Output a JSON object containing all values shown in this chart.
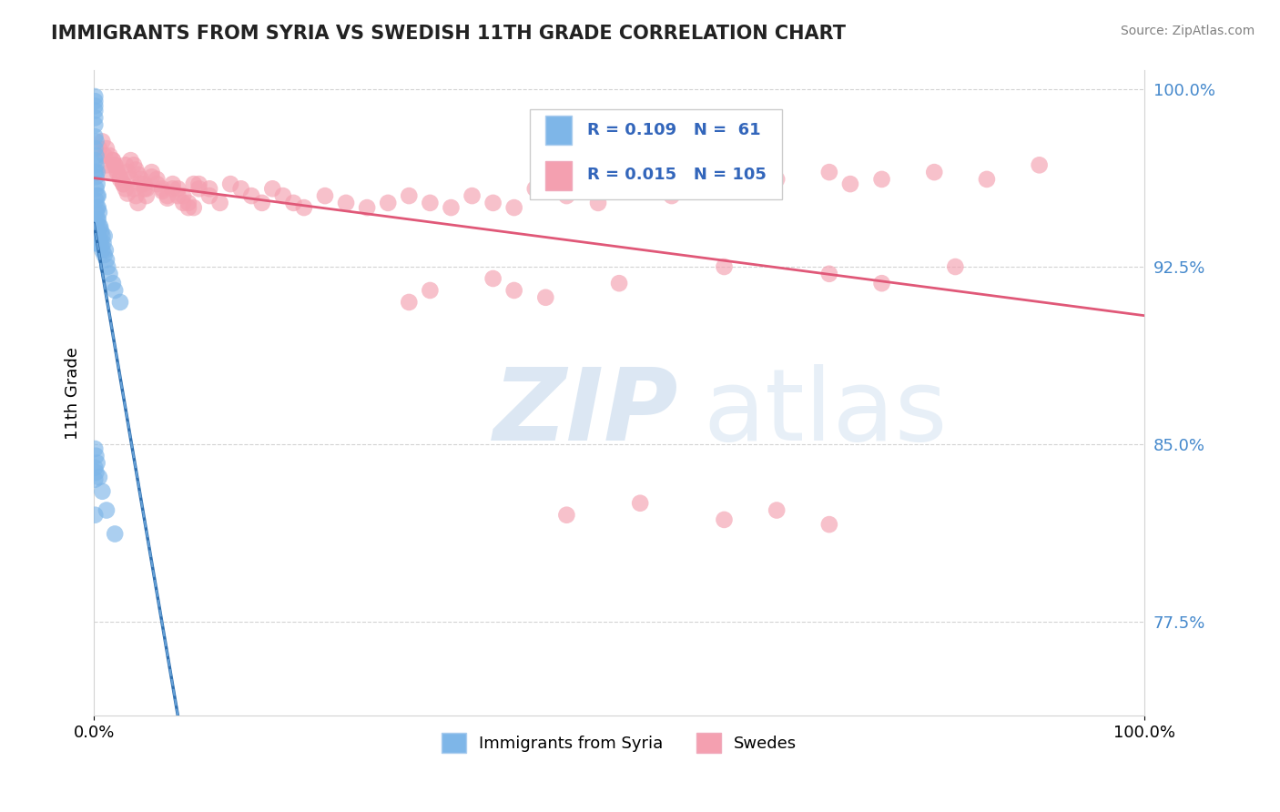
{
  "title": "IMMIGRANTS FROM SYRIA VS SWEDISH 11TH GRADE CORRELATION CHART",
  "source_text": "Source: ZipAtlas.com",
  "ylabel": "11th Grade",
  "legend_label1": "Immigrants from Syria",
  "legend_label2": "Swedes",
  "xlim": [
    0.0,
    1.0
  ],
  "ylim": [
    0.735,
    1.008
  ],
  "yticks": [
    0.775,
    0.85,
    0.925,
    1.0
  ],
  "ytick_labels": [
    "77.5%",
    "85.0%",
    "92.5%",
    "100.0%"
  ],
  "xtick_labels": [
    "0.0%",
    "100.0%"
  ],
  "xticks": [
    0.0,
    1.0
  ],
  "color_blue": "#7EB6E8",
  "color_pink": "#F4A0B0",
  "color_blue_line": "#3070B0",
  "color_pink_line": "#E05878",
  "blue_scatter_x": [
    0.001,
    0.001,
    0.001,
    0.001,
    0.001,
    0.001,
    0.001,
    0.001,
    0.001,
    0.001,
    0.002,
    0.002,
    0.002,
    0.002,
    0.002,
    0.002,
    0.002,
    0.002,
    0.002,
    0.002,
    0.003,
    0.003,
    0.003,
    0.003,
    0.003,
    0.003,
    0.003,
    0.004,
    0.004,
    0.004,
    0.004,
    0.005,
    0.005,
    0.005,
    0.006,
    0.006,
    0.007,
    0.007,
    0.008,
    0.008,
    0.009,
    0.01,
    0.01,
    0.011,
    0.012,
    0.013,
    0.015,
    0.018,
    0.02,
    0.025,
    0.001,
    0.001,
    0.001,
    0.002,
    0.002,
    0.003,
    0.005,
    0.008,
    0.012,
    0.02,
    0.001
  ],
  "blue_scatter_y": [
    0.997,
    0.995,
    0.993,
    0.991,
    0.988,
    0.985,
    0.98,
    0.975,
    0.97,
    0.965,
    0.978,
    0.972,
    0.968,
    0.963,
    0.958,
    0.953,
    0.948,
    0.943,
    0.938,
    0.935,
    0.965,
    0.96,
    0.955,
    0.95,
    0.945,
    0.94,
    0.935,
    0.955,
    0.95,
    0.945,
    0.94,
    0.948,
    0.942,
    0.937,
    0.942,
    0.936,
    0.94,
    0.934,
    0.938,
    0.932,
    0.935,
    0.938,
    0.93,
    0.932,
    0.928,
    0.925,
    0.922,
    0.918,
    0.915,
    0.91,
    0.848,
    0.84,
    0.835,
    0.845,
    0.838,
    0.842,
    0.836,
    0.83,
    0.822,
    0.812,
    0.82
  ],
  "pink_scatter_x": [
    0.005,
    0.008,
    0.01,
    0.012,
    0.015,
    0.018,
    0.02,
    0.022,
    0.025,
    0.028,
    0.03,
    0.032,
    0.035,
    0.038,
    0.04,
    0.042,
    0.045,
    0.048,
    0.05,
    0.055,
    0.06,
    0.065,
    0.07,
    0.075,
    0.08,
    0.085,
    0.09,
    0.095,
    0.1,
    0.11,
    0.012,
    0.015,
    0.018,
    0.02,
    0.022,
    0.025,
    0.028,
    0.03,
    0.032,
    0.035,
    0.038,
    0.04,
    0.042,
    0.045,
    0.048,
    0.05,
    0.055,
    0.06,
    0.065,
    0.07,
    0.075,
    0.08,
    0.085,
    0.09,
    0.095,
    0.1,
    0.11,
    0.12,
    0.13,
    0.14,
    0.15,
    0.16,
    0.17,
    0.18,
    0.19,
    0.2,
    0.22,
    0.24,
    0.26,
    0.28,
    0.3,
    0.32,
    0.34,
    0.36,
    0.38,
    0.4,
    0.42,
    0.45,
    0.48,
    0.5,
    0.55,
    0.58,
    0.6,
    0.65,
    0.7,
    0.72,
    0.75,
    0.8,
    0.85,
    0.9,
    0.32,
    0.38,
    0.43,
    0.5,
    0.6,
    0.7,
    0.75,
    0.82,
    0.3,
    0.4,
    0.45,
    0.52,
    0.6,
    0.65,
    0.7
  ],
  "pink_scatter_y": [
    0.975,
    0.978,
    0.972,
    0.968,
    0.965,
    0.97,
    0.968,
    0.966,
    0.963,
    0.96,
    0.958,
    0.956,
    0.97,
    0.968,
    0.966,
    0.964,
    0.962,
    0.96,
    0.958,
    0.965,
    0.962,
    0.958,
    0.955,
    0.96,
    0.958,
    0.955,
    0.952,
    0.95,
    0.96,
    0.958,
    0.975,
    0.972,
    0.97,
    0.968,
    0.965,
    0.962,
    0.96,
    0.968,
    0.965,
    0.962,
    0.958,
    0.955,
    0.952,
    0.96,
    0.958,
    0.955,
    0.963,
    0.96,
    0.957,
    0.954,
    0.958,
    0.955,
    0.952,
    0.95,
    0.96,
    0.958,
    0.955,
    0.952,
    0.96,
    0.958,
    0.955,
    0.952,
    0.958,
    0.955,
    0.952,
    0.95,
    0.955,
    0.952,
    0.95,
    0.952,
    0.955,
    0.952,
    0.95,
    0.955,
    0.952,
    0.95,
    0.958,
    0.955,
    0.952,
    0.96,
    0.955,
    0.958,
    0.96,
    0.962,
    0.965,
    0.96,
    0.962,
    0.965,
    0.962,
    0.968,
    0.915,
    0.92,
    0.912,
    0.918,
    0.925,
    0.922,
    0.918,
    0.925,
    0.91,
    0.915,
    0.82,
    0.825,
    0.818,
    0.822,
    0.816
  ]
}
